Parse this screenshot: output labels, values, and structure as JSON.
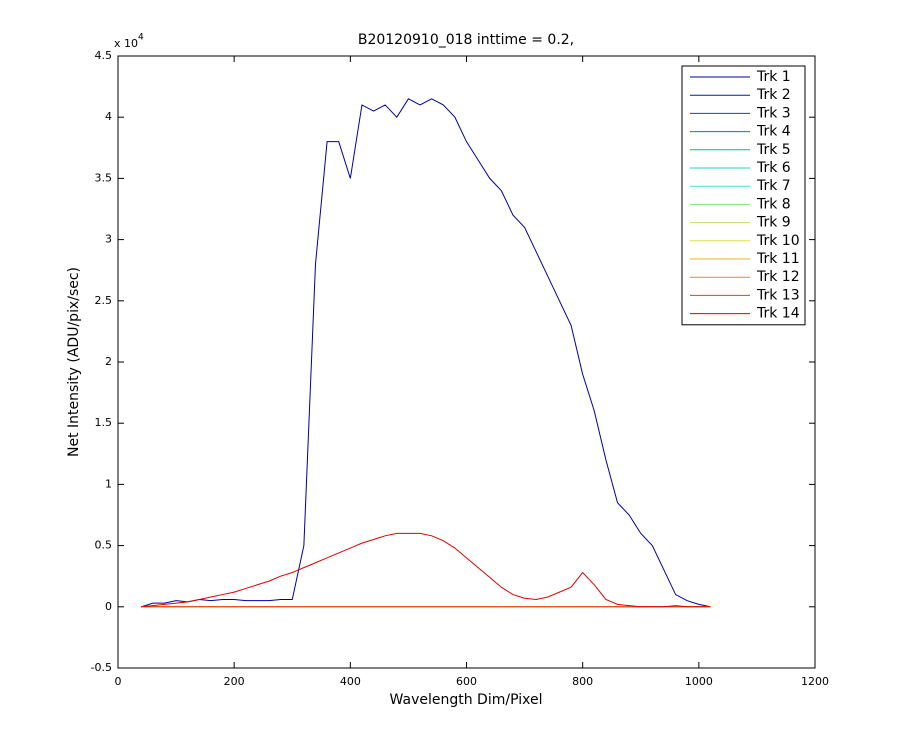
{
  "chart_data": {
    "type": "line",
    "title": "B20120910_018 inttime = 0.2,",
    "x_label": "Wavelength Dim/Pixel",
    "y_label": "Net Intensity (ADU/pix/sec)",
    "y_multiplier": {
      "base": "x 10",
      "exponent": "4"
    },
    "xlim": [
      0,
      1200
    ],
    "xticks": [
      0,
      200,
      400,
      600,
      800,
      1000,
      1200
    ],
    "ylim": [
      -0.5,
      4.5
    ],
    "yticks": [
      -0.5,
      0,
      0.5,
      1,
      1.5,
      2,
      2.5,
      3,
      3.5,
      4,
      4.5
    ],
    "legend": "northeast",
    "x": [
      40,
      60,
      80,
      100,
      120,
      140,
      160,
      180,
      200,
      220,
      240,
      260,
      280,
      300,
      320,
      340,
      360,
      380,
      400,
      420,
      440,
      460,
      480,
      500,
      520,
      540,
      560,
      580,
      600,
      620,
      640,
      660,
      680,
      700,
      720,
      740,
      760,
      780,
      800,
      820,
      840,
      860,
      880,
      900,
      920,
      940,
      960,
      980,
      1000,
      1020
    ],
    "series": [
      {
        "name": "Trk 1",
        "color": "#0000a0",
        "values": [
          0,
          0.03,
          0.03,
          0.05,
          0.04,
          0.06,
          0.05,
          0.06,
          0.06,
          0.05,
          0.05,
          0.05,
          0.06,
          0.06,
          0.5,
          2.8,
          3.8,
          3.8,
          3.5,
          4.1,
          4.05,
          4.1,
          4.0,
          4.15,
          4.1,
          4.15,
          4.1,
          4.0,
          3.8,
          3.65,
          3.5,
          3.4,
          3.2,
          3.1,
          2.9,
          2.7,
          2.5,
          2.3,
          1.9,
          1.6,
          1.2,
          0.85,
          0.75,
          0.6,
          0.5,
          0.3,
          0.1,
          0.05,
          0.02,
          0
        ]
      },
      {
        "name": "Trk 2",
        "color": "#00209c",
        "values": [
          0,
          0,
          0,
          0,
          0,
          0,
          0,
          0,
          0,
          0,
          0,
          0,
          0,
          0,
          0,
          0,
          0,
          0,
          0,
          0,
          0,
          0,
          0,
          0,
          0,
          0,
          0,
          0,
          0,
          0,
          0,
          0,
          0,
          0,
          0,
          0,
          0,
          0,
          0,
          0,
          0,
          0,
          0,
          0,
          0,
          0,
          0,
          0,
          0,
          0
        ]
      },
      {
        "name": "Trk 3",
        "color": "#0050a0",
        "values": [
          0,
          0,
          0,
          0,
          0,
          0,
          0,
          0,
          0,
          0,
          0,
          0,
          0,
          0,
          0,
          0,
          0,
          0,
          0,
          0,
          0,
          0,
          0,
          0,
          0,
          0,
          0,
          0,
          0,
          0,
          0,
          0,
          0,
          0,
          0,
          0,
          0,
          0,
          0,
          0,
          0,
          0,
          0,
          0,
          0,
          0,
          0,
          0,
          0,
          0
        ]
      },
      {
        "name": "Trk 4",
        "color": "#00809c",
        "values": [
          0,
          0,
          0,
          0,
          0,
          0,
          0,
          0,
          0,
          0,
          0,
          0,
          0,
          0,
          0,
          0,
          0,
          0,
          0,
          0,
          0,
          0,
          0,
          0,
          0,
          0,
          0,
          0,
          0,
          0,
          0,
          0,
          0,
          0,
          0,
          0,
          0,
          0,
          0,
          0,
          0,
          0,
          0,
          0,
          0,
          0,
          0,
          0,
          0,
          0
        ]
      },
      {
        "name": "Trk 5",
        "color": "#00b0c8",
        "values": [
          0,
          0,
          0,
          0,
          0,
          0,
          0,
          0,
          0,
          0,
          0,
          0,
          0,
          0,
          0,
          0,
          0,
          0,
          0,
          0,
          0,
          0,
          0,
          0,
          0,
          0,
          0,
          0,
          0,
          0,
          0,
          0,
          0,
          0,
          0,
          0,
          0,
          0,
          0,
          0,
          0,
          0,
          0,
          0,
          0,
          0,
          0,
          0,
          0,
          0
        ]
      },
      {
        "name": "Trk 6",
        "color": "#20d0d0",
        "values": [
          0,
          0,
          0,
          0,
          0,
          0,
          0,
          0,
          0,
          0,
          0,
          0,
          0,
          0,
          0,
          0,
          0,
          0,
          0,
          0,
          0,
          0,
          0,
          0,
          0,
          0,
          0,
          0,
          0,
          0,
          0,
          0,
          0,
          0,
          0,
          0,
          0,
          0,
          0,
          0,
          0,
          0,
          0,
          0,
          0,
          0,
          0,
          0,
          0,
          0
        ]
      },
      {
        "name": "Trk 7",
        "color": "#40e0d0",
        "values": [
          0,
          0,
          0,
          0,
          0,
          0,
          0,
          0,
          0,
          0,
          0,
          0,
          0,
          0,
          0,
          0,
          0,
          0,
          0,
          0,
          0,
          0,
          0,
          0,
          0,
          0,
          0,
          0,
          0,
          0,
          0,
          0,
          0,
          0,
          0,
          0,
          0,
          0,
          0,
          0,
          0,
          0,
          0,
          0,
          0,
          0,
          0,
          0,
          0,
          0
        ]
      },
      {
        "name": "Trk 8",
        "color": "#80e080",
        "values": [
          0,
          0,
          0,
          0,
          0,
          0,
          0,
          0,
          0,
          0,
          0,
          0,
          0,
          0,
          0,
          0,
          0,
          0,
          0,
          0,
          0,
          0,
          0,
          0,
          0,
          0,
          0,
          0,
          0,
          0,
          0,
          0,
          0,
          0,
          0,
          0,
          0,
          0,
          0,
          0,
          0,
          0,
          0,
          0,
          0,
          0,
          0,
          0,
          0,
          0
        ]
      },
      {
        "name": "Trk 9",
        "color": "#c0e060",
        "values": [
          0,
          0,
          0,
          0,
          0,
          0,
          0,
          0,
          0,
          0,
          0,
          0,
          0,
          0,
          0,
          0,
          0,
          0,
          0,
          0,
          0,
          0,
          0,
          0,
          0,
          0,
          0,
          0,
          0,
          0,
          0,
          0,
          0,
          0,
          0,
          0,
          0,
          0,
          0,
          0,
          0,
          0,
          0,
          0,
          0,
          0,
          0,
          0,
          0,
          0
        ]
      },
      {
        "name": "Trk 10",
        "color": "#e0e040",
        "values": [
          0,
          0,
          0,
          0,
          0,
          0,
          0,
          0,
          0,
          0,
          0,
          0,
          0,
          0,
          0,
          0,
          0,
          0,
          0,
          0,
          0,
          0,
          0,
          0,
          0,
          0,
          0,
          0,
          0,
          0,
          0,
          0,
          0,
          0,
          0,
          0,
          0,
          0,
          0,
          0,
          0,
          0,
          0,
          0,
          0,
          0,
          0,
          0,
          0,
          0
        ]
      },
      {
        "name": "Trk 11",
        "color": "#e0b020",
        "values": [
          0,
          0,
          0,
          0,
          0,
          0,
          0,
          0,
          0,
          0,
          0,
          0,
          0,
          0,
          0,
          0,
          0,
          0,
          0,
          0,
          0,
          0,
          0,
          0,
          0,
          0,
          0,
          0,
          0,
          0,
          0,
          0,
          0,
          0,
          0,
          0,
          0,
          0,
          0,
          0,
          0,
          0,
          0,
          0,
          0,
          0,
          0,
          0,
          0,
          0
        ]
      },
      {
        "name": "Trk 12",
        "color": "#f08040",
        "values": [
          0,
          0,
          0,
          0,
          0,
          0,
          0,
          0,
          0,
          0,
          0,
          0,
          0,
          0,
          0,
          0,
          0,
          0,
          0,
          0,
          0,
          0,
          0,
          0,
          0,
          0,
          0,
          0,
          0,
          0,
          0,
          0,
          0,
          0,
          0,
          0,
          0,
          0,
          0,
          0,
          0,
          0,
          0,
          0,
          0,
          0,
          0,
          0,
          0,
          0
        ]
      },
      {
        "name": "Trk 13",
        "color": "#e04020",
        "values": [
          0,
          0,
          0,
          0,
          0,
          0,
          0,
          0,
          0,
          0,
          0,
          0,
          0,
          0,
          0,
          0,
          0,
          0,
          0,
          0,
          0,
          0,
          0,
          0,
          0,
          0,
          0,
          0,
          0,
          0,
          0,
          0,
          0,
          0,
          0,
          0,
          0,
          0,
          0,
          0,
          0,
          0,
          0,
          0,
          0,
          0,
          0,
          0,
          0,
          0
        ]
      },
      {
        "name": "Trk 14",
        "color": "#e00000",
        "values": [
          0,
          0.01,
          0.02,
          0.03,
          0.04,
          0.06,
          0.08,
          0.1,
          0.12,
          0.15,
          0.18,
          0.21,
          0.25,
          0.28,
          0.32,
          0.36,
          0.4,
          0.44,
          0.48,
          0.52,
          0.55,
          0.58,
          0.6,
          0.6,
          0.6,
          0.58,
          0.54,
          0.48,
          0.4,
          0.32,
          0.24,
          0.16,
          0.1,
          0.07,
          0.06,
          0.08,
          0.12,
          0.16,
          0.28,
          0.18,
          0.06,
          0.02,
          0.01,
          0,
          0,
          0,
          0.01,
          0,
          0,
          0
        ]
      }
    ]
  }
}
